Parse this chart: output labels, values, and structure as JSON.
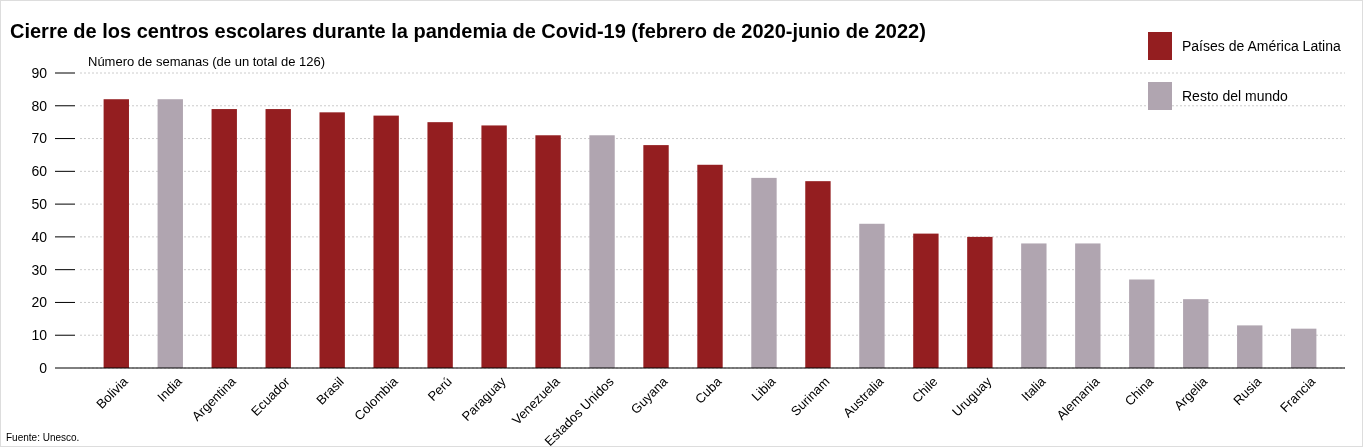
{
  "chart_data": {
    "type": "bar",
    "title": "Cierre de los centros escolares durante la pandemia de Covid-19 (febrero de 2020-junio de 2022)",
    "ylabel": "Número de semanas (de un total de 126)",
    "categories": [
      "Bolivia",
      "India",
      "Argentina",
      "Ecuador",
      "Brasil",
      "Colombia",
      "Perú",
      "Paraguay",
      "Venezuela",
      "Estados Unidos",
      "Guyana",
      "Cuba",
      "Libia",
      "Surinam",
      "Australia",
      "Chile",
      "Uruguay",
      "Italia",
      "Alemania",
      "China",
      "Argelia",
      "Rusia",
      "Francia"
    ],
    "stacked": true,
    "series": [
      {
        "name": "Países de América Latina",
        "color": "#941e20",
        "values": [
          82,
          null,
          79,
          79,
          78,
          77,
          75,
          74,
          71,
          null,
          68,
          62,
          null,
          57,
          null,
          41,
          40,
          null,
          null,
          null,
          null,
          null,
          null
        ]
      },
      {
        "name": "Resto del mundo",
        "color": "#b0a5b0",
        "values": [
          null,
          82,
          null,
          null,
          null,
          null,
          null,
          null,
          null,
          71,
          null,
          null,
          58,
          null,
          44,
          null,
          null,
          38,
          38,
          27,
          21,
          13,
          12
        ]
      }
    ],
    "ylim": [
      0,
      90
    ],
    "yticks": [
      0,
      10,
      20,
      30,
      40,
      50,
      60,
      70,
      80,
      90
    ],
    "grid": "y",
    "legend": "top right",
    "annotations": [
      "Fuente: Unesco."
    ]
  }
}
